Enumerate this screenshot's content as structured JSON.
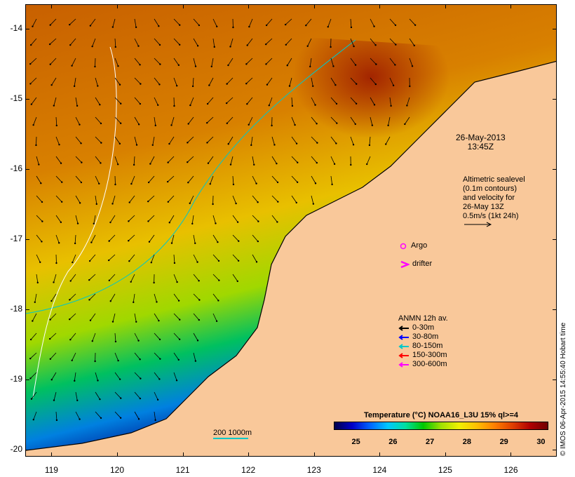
{
  "map": {
    "lon_range": [
      118.6,
      126.7
    ],
    "lat_range": [
      -20.1,
      -13.65
    ],
    "lon_ticks": [
      "119",
      "120",
      "121",
      "122",
      "123",
      "124",
      "125",
      "126"
    ],
    "lat_ticks": [
      "-14",
      "-15",
      "-16",
      "-17",
      "-18",
      "-19",
      "-20"
    ],
    "land_color": "#f9c89a",
    "ocean_shallow_color": "#00c800",
    "ocean_deep_color": "#b04000"
  },
  "annotations": {
    "date": "26-May-2013",
    "time": "13:45Z",
    "altimetry_lines": [
      "Altimetric sealevel",
      "(0.1m contours)",
      "and velocity for",
      "26-May 13Z",
      "0.5m/s (1kt 24h)"
    ],
    "argo_label": "Argo",
    "drifter_label": "drifter",
    "argo_icon": "circle-icon",
    "drifter_icon": "chevron-right-icon"
  },
  "anmn": {
    "title": "ANMN 12h av.",
    "items": [
      {
        "label": "0-30m",
        "color": "#000000"
      },
      {
        "label": "30-80m",
        "color": "#0000ff"
      },
      {
        "label": "80-150m",
        "color": "#00c8c8"
      },
      {
        "label": "150-300m",
        "color": "#ff0000"
      },
      {
        "label": "300-600m",
        "color": "#ff00ff"
      }
    ]
  },
  "colorbar": {
    "title": "Temperature (°C) NOAA16_L3U 15% ql>=4",
    "ticks": [
      "25",
      "26",
      "27",
      "28",
      "29",
      "30"
    ],
    "range": [
      24.4,
      30.2
    ]
  },
  "scale": {
    "label": "200  1000m"
  },
  "credit": "© IMOS 06-Apr-2015 14:55:40 Hobart time"
}
